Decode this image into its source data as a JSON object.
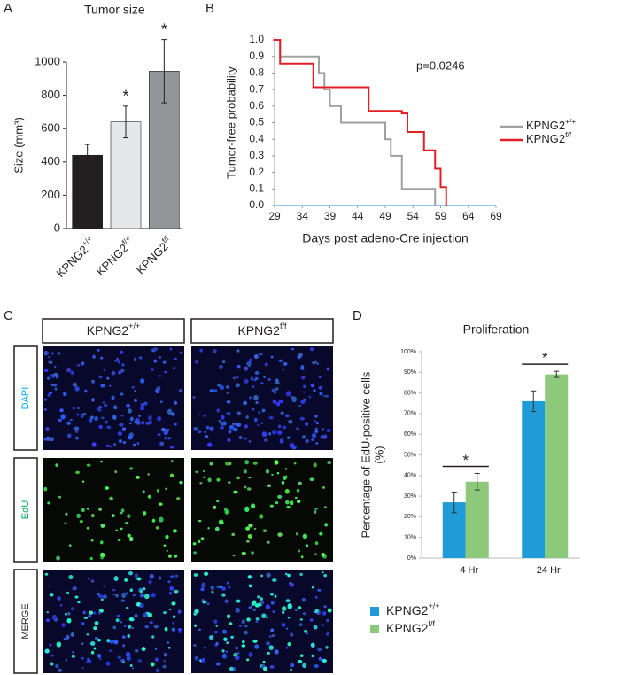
{
  "figure": {
    "panel_labels": [
      "A",
      "B",
      "C",
      "D"
    ],
    "microscopy": {
      "columns": [
        "KPNG2+/+",
        "KPNG2f/f"
      ],
      "rows": [
        "DAPI",
        "EdU",
        "MERGE"
      ],
      "row_colors": [
        "#00aeef",
        "#00a651",
        "#231f20"
      ]
    }
  },
  "chart_data": [
    {
      "type": "bar",
      "title": "Tumor size",
      "ylabel": "Size (mm³)",
      "categories": [
        "KPNG2+/+",
        "KPNG2f/+",
        "KPNG2f/f"
      ],
      "values": [
        440,
        640,
        945
      ],
      "errors": [
        65,
        95,
        190
      ],
      "colors": [
        "#231f20",
        "#e6e7e8",
        "#939598"
      ],
      "value_annotations": [
        null,
        "*",
        "*"
      ],
      "ylim": [
        0,
        1000
      ],
      "yticks": [
        0,
        200,
        400,
        600,
        800,
        1000
      ]
    },
    {
      "type": "step",
      "xlabel": "Days post adeno-Cre injection",
      "ylabel": "Tumor-free probability",
      "annotation": "p=0.0246",
      "series": [
        {
          "name": "KPNG2+/+",
          "color": "#a0a0a0",
          "x": [
            29,
            30,
            37,
            38,
            39,
            41,
            49,
            50,
            52,
            58
          ],
          "values": [
            1,
            0.9,
            0.8,
            0.7,
            0.6,
            0.5,
            0.4,
            0.3,
            0.1,
            0
          ]
        },
        {
          "name": "KPNG2f/f",
          "color": "#e31e24",
          "x": [
            29,
            30,
            36,
            46,
            52,
            53,
            56,
            58,
            59,
            60
          ],
          "values": [
            1,
            0.857,
            0.714,
            0.571,
            0.556,
            0.444,
            0.333,
            0.222,
            0.111,
            0
          ]
        }
      ],
      "xlim": [
        29,
        69
      ],
      "xticks": [
        29,
        34,
        39,
        44,
        49,
        54,
        59,
        64,
        69
      ],
      "ylim": [
        0,
        1
      ],
      "yticks": [
        {
          "value": 0,
          "label": "0.0"
        },
        0.1,
        0.2,
        0.3,
        0.4,
        0.5,
        0.6,
        0.7,
        0.8,
        0.9,
        {
          "value": 1,
          "label": "1.0"
        }
      ]
    },
    {
      "type": "grouped-bar",
      "title": "Proliferation",
      "ylabel": [
        "Percentage of EdU-positive cells",
        "(%)"
      ],
      "categories": [
        "4 Hr",
        "24 Hr"
      ],
      "annotations": [
        "*",
        "*"
      ],
      "series": [
        {
          "name": "KPNG2+/+",
          "color": "#1f9bd7",
          "values": [
            27,
            76
          ],
          "errors": [
            5,
            5
          ]
        },
        {
          "name": "KPNG2f/f",
          "color": "#8cc97a",
          "values": [
            37,
            89
          ],
          "errors": [
            4,
            1.5
          ]
        }
      ],
      "ylim": [
        0,
        100
      ],
      "yticks": [
        {
          "value": 0,
          "label": "0%"
        },
        {
          "value": 10,
          "label": "10%"
        },
        {
          "value": 20,
          "label": "20%"
        },
        {
          "value": 30,
          "label": "30%"
        },
        {
          "value": 40,
          "label": "40%"
        },
        {
          "value": 50,
          "label": "50%"
        },
        {
          "value": 60,
          "label": "60%"
        },
        {
          "value": 70,
          "label": "70%"
        },
        {
          "value": 80,
          "label": "80%"
        },
        {
          "value": 90,
          "label": "90%"
        },
        {
          "value": 100,
          "label": "100%"
        }
      ]
    }
  ]
}
